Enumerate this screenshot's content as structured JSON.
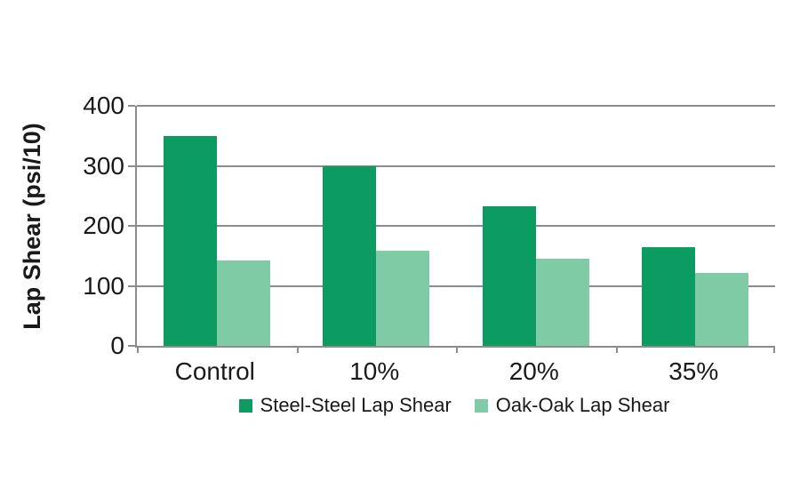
{
  "chart_data": {
    "type": "bar",
    "categories": [
      "Control",
      "10%",
      "20%",
      "35%"
    ],
    "series": [
      {
        "name": "Steel-Steel Lap Shear",
        "color": "#0c9c62",
        "values": [
          350,
          300,
          233,
          165
        ]
      },
      {
        "name": "Oak-Oak Lap Shear",
        "color": "#7fcba5",
        "values": [
          142,
          158,
          145,
          122
        ]
      }
    ],
    "title": "",
    "xlabel": "",
    "ylabel": "Lap Shear (psi/10)",
    "ylim": [
      0,
      400
    ],
    "yticks": [
      0,
      100,
      200,
      300,
      400
    ],
    "grid": true,
    "legend_position": "bottom"
  },
  "colors": {
    "series_steel": "#0c9c62",
    "series_oak": "#7fcba5",
    "gridline": "#8c8c8c",
    "text": "#1a1a1a",
    "background": "#ffffff"
  }
}
